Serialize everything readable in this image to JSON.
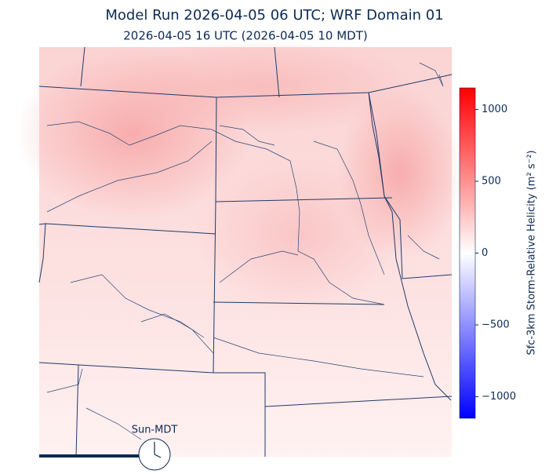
{
  "title": "Model Run 2026-04-05 06 UTC; WRF Domain 01",
  "subtitle": "2026-04-05 16 UTC  (2026-04-05 10 MDT)",
  "clock_label": "Sun-MDT",
  "colorbar": {
    "label": "Sfc-3km Storm-Relative Helicity (m² s⁻²)",
    "lim": [
      -1150,
      1150
    ],
    "ticks": [
      {
        "value": -1000,
        "label": "−1000"
      },
      {
        "value": -500,
        "label": "−500"
      },
      0,
      500,
      1000
    ],
    "colors": [
      "#0000ff",
      "#ffffff",
      "#ff0000"
    ]
  }
}
